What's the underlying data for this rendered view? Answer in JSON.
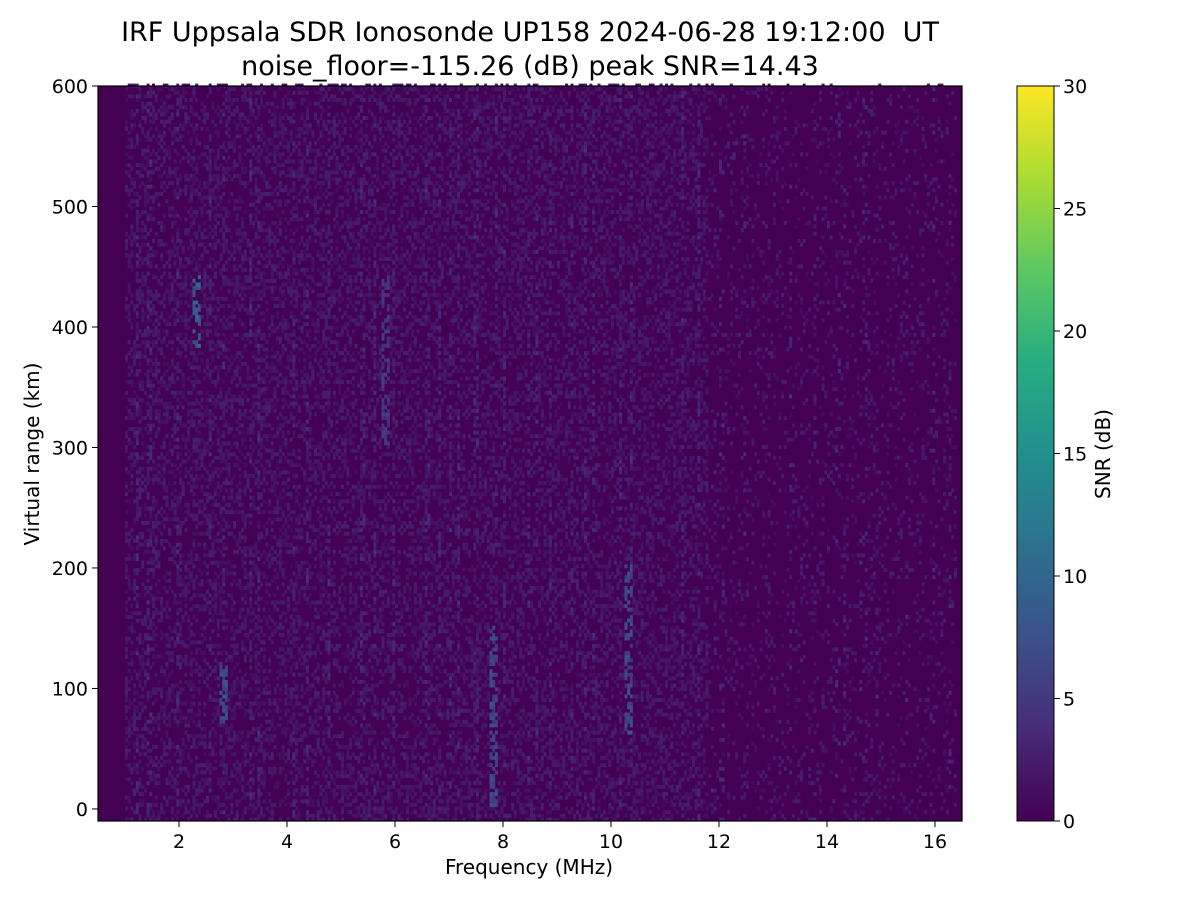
{
  "title_line1": "IRF Uppsala SDR Ionosonde UP158 2024-06-28 19:12:00  UT",
  "title_line2": "noise_floor=-115.26 (dB) peak SNR=14.43",
  "colors": {
    "background": "#440154",
    "colormap": [
      "#440154",
      "#472c7a",
      "#3b518b",
      "#2c718e",
      "#21908d",
      "#27ad81",
      "#5cc863",
      "#aadc32",
      "#fde725"
    ]
  },
  "chart_data": {
    "type": "heatmap",
    "title": "IRF Uppsala SDR Ionosonde UP158 2024-06-28 19:12:00  UT\nnoise_floor=-115.26 (dB) peak SNR=14.43",
    "xlabel": "Frequency (MHz)",
    "ylabel": "Virtual range (km)",
    "colorbar_label": "SNR (dB)",
    "xlim": [
      0.5,
      16.5
    ],
    "ylim": [
      -10,
      600
    ],
    "clim": [
      0,
      30
    ],
    "x_ticks": [
      "2",
      "4",
      "6",
      "8",
      "10",
      "12",
      "14",
      "16"
    ],
    "y_ticks": [
      "0",
      "100",
      "200",
      "300",
      "400",
      "500",
      "600"
    ],
    "colorbar_ticks": [
      "0",
      "5",
      "10",
      "15",
      "20",
      "25",
      "30"
    ],
    "noise_floor_db": -115.26,
    "peak_snr_db": 14.43,
    "approx_data_freq_range_mhz": [
      0.5,
      16.4
    ],
    "no_data_below_mhz": 1.0,
    "notable_features": [
      {
        "freq_mhz": 2.3,
        "range_km": [
          380,
          440
        ],
        "snr_db": 11
      },
      {
        "freq_mhz": 2.8,
        "range_km": [
          70,
          120
        ],
        "snr_db": 9
      },
      {
        "freq_mhz": 5.8,
        "range_km": [
          300,
          440
        ],
        "snr_db": 6
      },
      {
        "freq_mhz": 7.8,
        "range_km": [
          0,
          150
        ],
        "snr_db": 8
      },
      {
        "freq_mhz": 10.3,
        "range_km": [
          60,
          200
        ],
        "snr_db": 8
      }
    ]
  }
}
